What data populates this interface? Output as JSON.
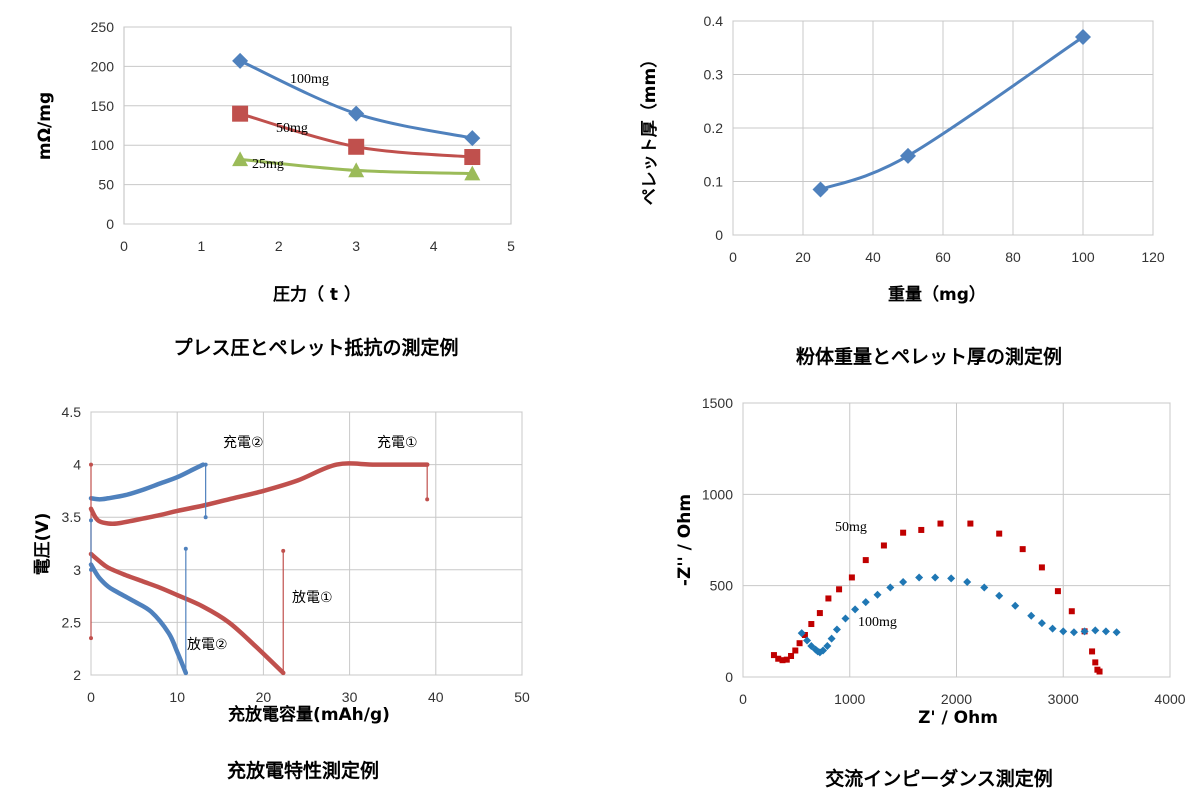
{
  "captions": {
    "press": "プレス圧とペレット抵抗の測定例",
    "weight": "粉体重量とペレット厚の測定例",
    "charge": "充放電特性測定例",
    "impedance": "交流インピーダンス測定例"
  },
  "chart_data": [
    {
      "type": "line",
      "title": "",
      "xlabel": "圧力（ t ）",
      "ylabel": "mΩ/mg",
      "xlim": [
        0,
        5
      ],
      "ylim": [
        0,
        250
      ],
      "xticks": [
        "0",
        "1",
        "2",
        "3",
        "4",
        "5"
      ],
      "yticks": [
        "0",
        "50",
        "100",
        "150",
        "200",
        "250"
      ],
      "grid": "horizontal",
      "series": [
        {
          "name": "100mg",
          "color": "#4f81bd",
          "marker": "diamond",
          "x": [
            1.5,
            3,
            4.5
          ],
          "y": [
            207,
            140,
            109
          ]
        },
        {
          "name": "50mg",
          "color": "#c0504d",
          "marker": "square",
          "x": [
            1.5,
            3,
            4.5
          ],
          "y": [
            140,
            98,
            85
          ]
        },
        {
          "name": "25mg",
          "color": "#9bbb59",
          "marker": "triangle",
          "x": [
            1.5,
            3,
            4.5
          ],
          "y": [
            82,
            68,
            64
          ]
        }
      ]
    },
    {
      "type": "line",
      "title": "",
      "xlabel": "重量（mg）",
      "ylabel": "ペレット厚（mm）",
      "xlim": [
        0,
        120
      ],
      "ylim": [
        0,
        0.4
      ],
      "xticks": [
        "0",
        "20",
        "40",
        "60",
        "80",
        "100",
        "120"
      ],
      "yticks": [
        "0",
        "0.1",
        "0.2",
        "0.3",
        "0.4"
      ],
      "grid": "both",
      "series": [
        {
          "name": "",
          "color": "#4f81bd",
          "marker": "diamond",
          "x": [
            25,
            50,
            100
          ],
          "y": [
            0.085,
            0.148,
            0.37
          ]
        }
      ]
    },
    {
      "type": "line",
      "title": "",
      "xlabel": "充放電容量(mAh/g)",
      "ylabel": "電圧(V)",
      "xlim": [
        0,
        50
      ],
      "ylim": [
        2,
        4.5
      ],
      "xticks": [
        "0",
        "10",
        "20",
        "30",
        "40",
        "50"
      ],
      "yticks": [
        "2",
        "2.5",
        "3",
        "3.5",
        "4",
        "4.5"
      ],
      "grid": "both",
      "annotations": [
        "充電②",
        "充電①",
        "放電①",
        "放電②"
      ],
      "series": [
        {
          "name": "充電①",
          "color": "#c0504d",
          "x": [
            0,
            0.5,
            1,
            2,
            3,
            5,
            8,
            10,
            13,
            16,
            20,
            24,
            28.5,
            33,
            39
          ],
          "y": [
            3.58,
            3.5,
            3.46,
            3.44,
            3.44,
            3.47,
            3.52,
            3.56,
            3.61,
            3.67,
            3.75,
            3.85,
            4.0,
            4.0,
            4.0
          ]
        },
        {
          "name": "放電①",
          "color": "#c0504d",
          "x": [
            0,
            1,
            2,
            4,
            6,
            8,
            10,
            13,
            16,
            19,
            22.3
          ],
          "y": [
            3.15,
            3.08,
            3.02,
            2.95,
            2.89,
            2.83,
            2.76,
            2.65,
            2.5,
            2.28,
            2.02
          ]
        },
        {
          "name": "充電②",
          "color": "#4f81bd",
          "x": [
            0,
            1,
            2,
            4,
            6,
            8,
            10,
            12,
            13
          ],
          "y": [
            3.68,
            3.67,
            3.68,
            3.71,
            3.76,
            3.82,
            3.88,
            3.96,
            4.0
          ]
        },
        {
          "name": "放電②",
          "color": "#4f81bd",
          "x": [
            0,
            0.5,
            1,
            2,
            3,
            5,
            7,
            9,
            10,
            11
          ],
          "y": [
            3.05,
            2.98,
            2.92,
            2.84,
            2.79,
            2.7,
            2.6,
            2.4,
            2.22,
            2.02
          ]
        }
      ]
    },
    {
      "type": "scatter",
      "title": "",
      "xlabel": "Z' / Ohm",
      "ylabel": "-Z'' / Ohm",
      "xlim": [
        0,
        4000
      ],
      "ylim": [
        0,
        1500
      ],
      "xticks": [
        "0",
        "1000",
        "2000",
        "3000",
        "4000"
      ],
      "yticks": [
        "0",
        "500",
        "1000",
        "1500"
      ],
      "grid": "both",
      "series": [
        {
          "name": "50mg",
          "color": "#c00000",
          "marker": "square",
          "x": [
            290,
            330,
            370,
            410,
            450,
            490,
            530,
            580,
            640,
            720,
            800,
            900,
            1020,
            1150,
            1320,
            1500,
            1670,
            1850,
            2130,
            2400,
            2620,
            2800,
            2950,
            3080,
            3200,
            3270,
            3300,
            3320,
            3340
          ],
          "y": [
            120,
            100,
            92,
            95,
            115,
            145,
            185,
            230,
            290,
            350,
            430,
            480,
            545,
            640,
            720,
            790,
            805,
            840,
            840,
            785,
            700,
            600,
            470,
            360,
            250,
            140,
            80,
            40,
            30
          ]
        },
        {
          "name": "100mg",
          "color": "#1f77b4",
          "marker": "diamond",
          "x": [
            550,
            600,
            640,
            680,
            700,
            720,
            750,
            790,
            830,
            880,
            960,
            1050,
            1150,
            1260,
            1380,
            1500,
            1650,
            1800,
            1950,
            2100,
            2260,
            2400,
            2550,
            2700,
            2800,
            2900,
            3000,
            3100,
            3200,
            3300,
            3400,
            3500
          ],
          "y": [
            240,
            200,
            170,
            150,
            140,
            135,
            145,
            170,
            210,
            260,
            320,
            370,
            410,
            450,
            490,
            520,
            545,
            545,
            540,
            520,
            490,
            445,
            390,
            335,
            295,
            265,
            250,
            245,
            250,
            255,
            250,
            245
          ]
        }
      ]
    }
  ]
}
